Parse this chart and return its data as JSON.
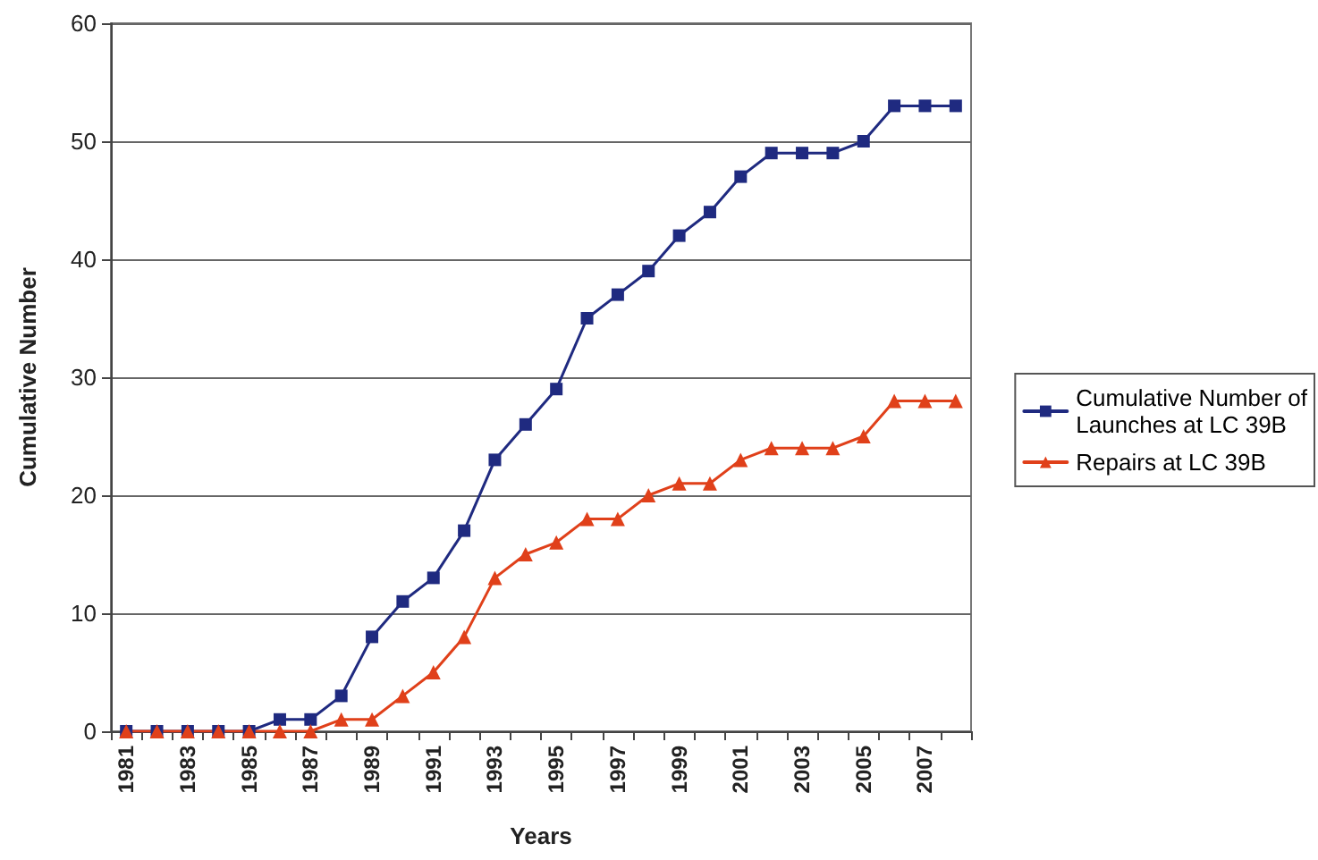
{
  "chart_data": {
    "type": "line",
    "xlabel": "Years",
    "ylabel": "Cumulative Number",
    "categories": [
      "1981",
      null,
      "1983",
      null,
      "1985",
      null,
      "1987",
      null,
      "1989",
      null,
      "1991",
      null,
      "1993",
      null,
      "1995",
      null,
      "1997",
      null,
      "1999",
      null,
      "2001",
      null,
      "2003",
      null,
      "2005",
      null,
      "2007",
      null
    ],
    "series": [
      {
        "name": "Cumulative Number of Launches at LC 39B",
        "color": "#1f2a80",
        "marker": "square",
        "values": [
          0,
          0,
          0,
          0,
          0,
          1,
          1,
          3,
          8,
          11,
          13,
          17,
          23,
          26,
          29,
          35,
          37,
          39,
          42,
          44,
          47,
          49,
          49,
          49,
          50,
          53,
          53,
          53
        ]
      },
      {
        "name": "Repairs at LC 39B",
        "color": "#e0401a",
        "marker": "triangle",
        "values": [
          0,
          0,
          0,
          0,
          0,
          0,
          0,
          1,
          1,
          3,
          5,
          8,
          13,
          15,
          16,
          18,
          18,
          20,
          21,
          21,
          23,
          24,
          24,
          24,
          25,
          28,
          28,
          28
        ]
      }
    ],
    "ylim": [
      0,
      60
    ],
    "yticks": [
      0,
      10,
      20,
      30,
      40,
      50,
      60
    ],
    "grid": "y",
    "legend": "right",
    "line_style": "solid"
  }
}
